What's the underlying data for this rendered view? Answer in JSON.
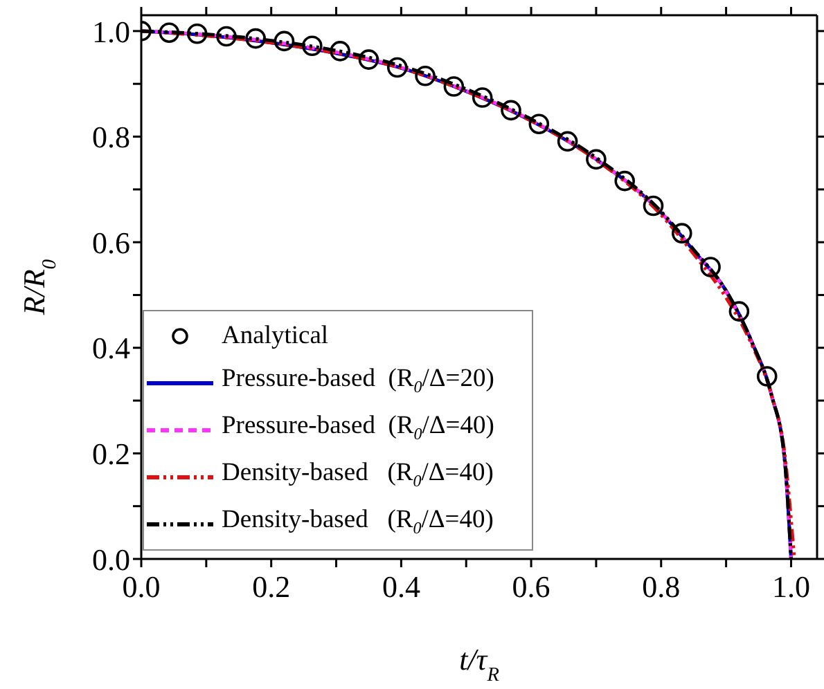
{
  "chart_data": {
    "type": "line",
    "xlabel": "t/τ$_{R}$",
    "ylabel": "R/R$_{0}$",
    "xlim": [
      0,
      1.04
    ],
    "ylim": [
      0,
      1.03
    ],
    "xticks": [
      {
        "value": 0,
        "label": "0.0"
      },
      {
        "value": 0.1,
        "label": null
      },
      {
        "value": 0.2,
        "label": "0.2"
      },
      {
        "value": 0.3,
        "label": null
      },
      {
        "value": 0.4,
        "label": "0.4"
      },
      {
        "value": 0.5,
        "label": null
      },
      {
        "value": 0.6,
        "label": "0.6"
      },
      {
        "value": 0.7,
        "label": null
      },
      {
        "value": 0.8,
        "label": "0.8"
      },
      {
        "value": 0.9,
        "label": null
      },
      {
        "value": 1.0,
        "label": "1.0"
      }
    ],
    "yticks": [
      {
        "value": 0,
        "label": "0.0"
      },
      {
        "value": 0.1,
        "label": null
      },
      {
        "value": 0.2,
        "label": "0.2"
      },
      {
        "value": 0.3,
        "label": null
      },
      {
        "value": 0.4,
        "label": "0.4"
      },
      {
        "value": 0.5,
        "label": null
      },
      {
        "value": 0.6,
        "label": "0.6"
      },
      {
        "value": 0.7,
        "label": null
      },
      {
        "value": 0.8,
        "label": "0.8"
      },
      {
        "value": 0.9,
        "label": null
      },
      {
        "value": 1.0,
        "label": "1.0"
      }
    ],
    "grid": false,
    "legend": "bottom left",
    "series": [
      {
        "name": "Analytical",
        "type": "scatter",
        "marker": "circle",
        "color": "#000000",
        "x": [
          0.0,
          0.043,
          0.086,
          0.131,
          0.176,
          0.22,
          0.263,
          0.306,
          0.35,
          0.394,
          0.437,
          0.481,
          0.525,
          0.569,
          0.612,
          0.656,
          0.7,
          0.744,
          0.788,
          0.832,
          0.876,
          0.92,
          0.963
        ],
        "values": [
          1.0,
          0.997,
          0.995,
          0.99,
          0.986,
          0.981,
          0.972,
          0.962,
          0.946,
          0.931,
          0.915,
          0.895,
          0.874,
          0.85,
          0.824,
          0.791,
          0.757,
          0.716,
          0.669,
          0.617,
          0.553,
          0.469,
          0.346
        ]
      },
      {
        "name": "Pressure-based  (R$_{0}$/Δ=20)",
        "line_style": "solid",
        "color": "#0000cc",
        "x": [
          0.0,
          0.1,
          0.2,
          0.3,
          0.4,
          0.5,
          0.6,
          0.7,
          0.8,
          0.85,
          0.9,
          0.94,
          0.97,
          0.99,
          1.0
        ],
        "values": [
          1.0,
          0.992,
          0.978,
          0.958,
          0.93,
          0.886,
          0.83,
          0.757,
          0.656,
          0.584,
          0.508,
          0.41,
          0.31,
          0.19,
          0.0
        ]
      },
      {
        "name": "Pressure-based  (R$_{0}$/Δ=40)",
        "line_style": "dashed",
        "color": "#ff33ff",
        "x": [
          0.0,
          0.1,
          0.2,
          0.3,
          0.4,
          0.5,
          0.6,
          0.7,
          0.8,
          0.85,
          0.9,
          0.94,
          0.97,
          0.99,
          1.0
        ],
        "values": [
          1.0,
          0.993,
          0.98,
          0.96,
          0.931,
          0.887,
          0.831,
          0.757,
          0.656,
          0.584,
          0.506,
          0.408,
          0.31,
          0.19,
          0.0
        ]
      },
      {
        "name": "Density-based   (R$_{0}$/Δ=40)",
        "line_style": "dotted",
        "color": "#dd1111",
        "x": [
          0.0,
          0.1,
          0.2,
          0.3,
          0.4,
          0.5,
          0.6,
          0.7,
          0.8,
          0.85,
          0.9,
          0.94,
          0.97,
          0.99,
          1.005
        ],
        "values": [
          1.0,
          0.991,
          0.978,
          0.958,
          0.93,
          0.886,
          0.83,
          0.756,
          0.652,
          0.578,
          0.495,
          0.405,
          0.31,
          0.2,
          0.0
        ]
      },
      {
        "name": "Density-based   (R$_{0}$/Δ=40)",
        "line_style": "dotted",
        "color": "#000000",
        "x": [
          0.0,
          0.1,
          0.2,
          0.3,
          0.4,
          0.5,
          0.6,
          0.7,
          0.8,
          0.85,
          0.9,
          0.94,
          0.97,
          0.99,
          1.0
        ],
        "values": [
          1.0,
          0.994,
          0.982,
          0.963,
          0.934,
          0.89,
          0.833,
          0.76,
          0.658,
          0.586,
          0.508,
          0.41,
          0.31,
          0.19,
          0.0
        ]
      }
    ]
  }
}
